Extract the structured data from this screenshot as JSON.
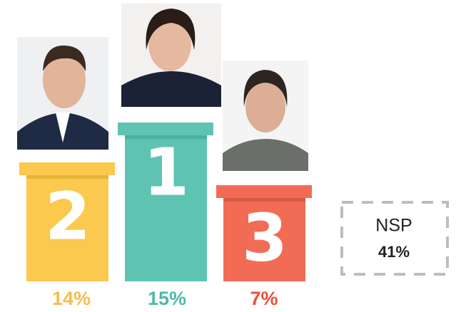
{
  "podium": [
    {
      "rank": "2",
      "result": "14%"
    },
    {
      "rank": "1",
      "result": "15%"
    },
    {
      "rank": "3",
      "result": "7%"
    }
  ],
  "undecided": {
    "label": "NSP",
    "result": "41%"
  }
}
